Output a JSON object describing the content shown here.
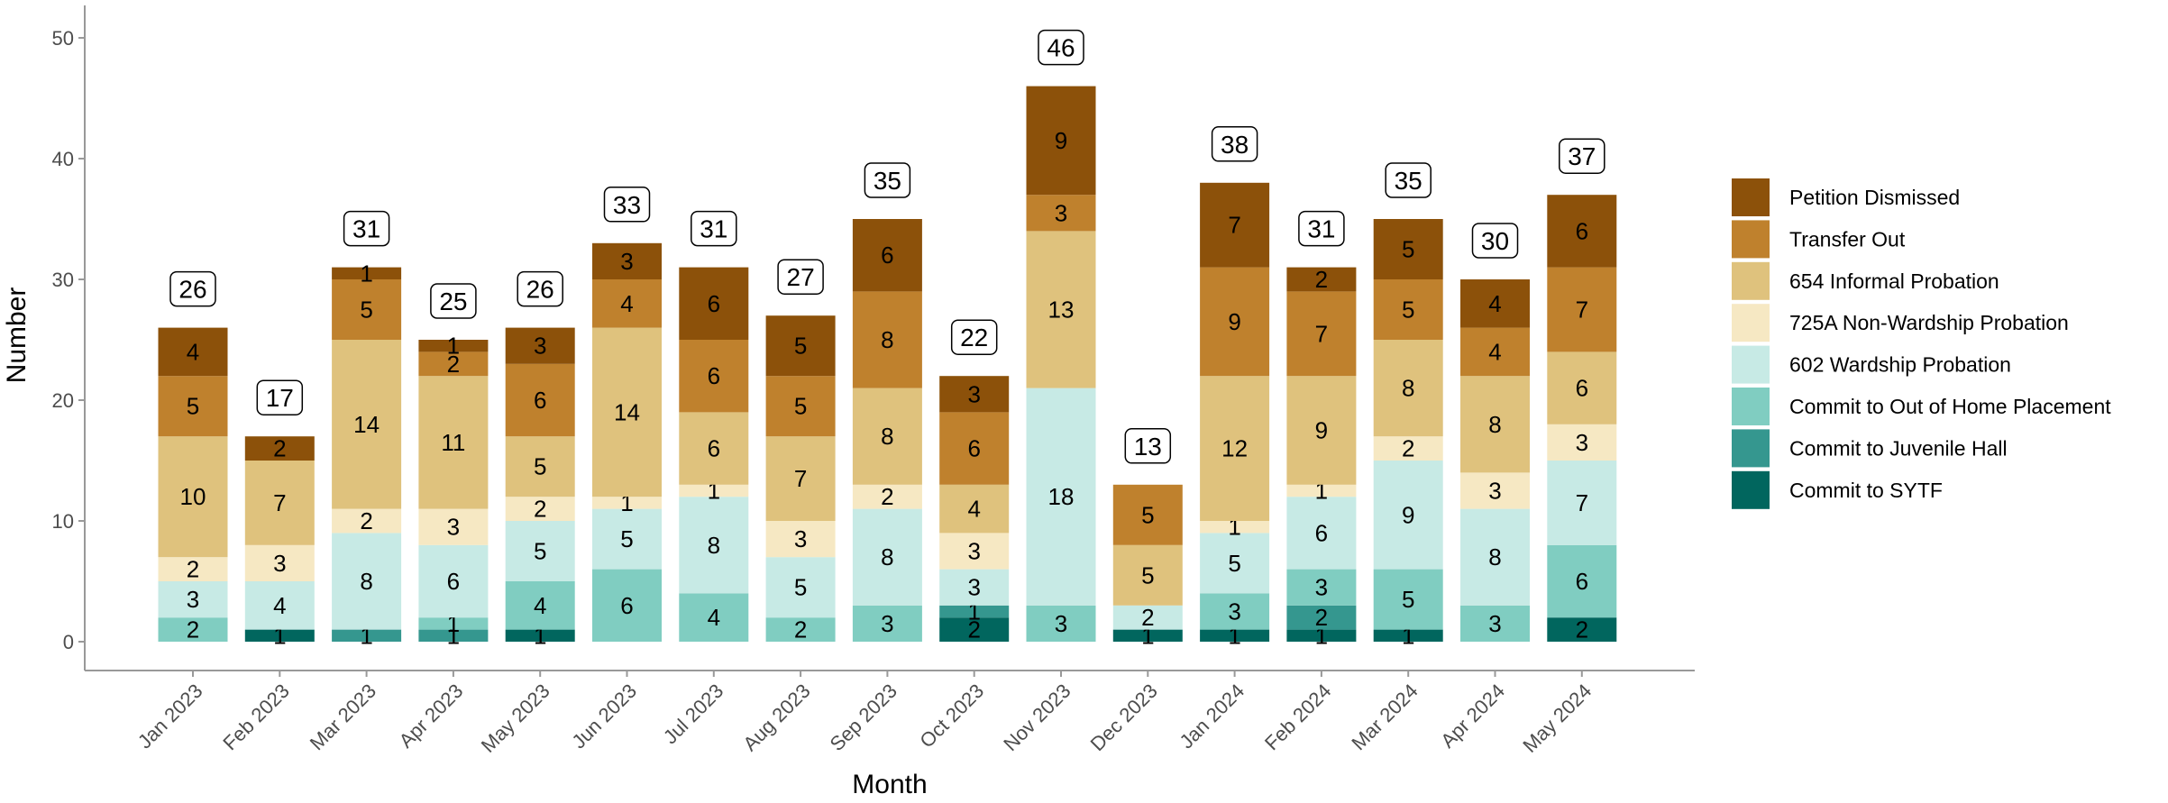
{
  "chart_data": {
    "type": "bar",
    "stacked": true,
    "title": "",
    "xlabel": "Month",
    "ylabel": "Number",
    "ylim": [
      0,
      50
    ],
    "yticks": [
      0,
      10,
      20,
      30,
      40,
      50
    ],
    "grid": false,
    "legend_position": "right",
    "categories": [
      "Jan 2023",
      "Feb 2023",
      "Mar 2023",
      "Apr 2023",
      "May 2023",
      "Jun 2023",
      "Jul 2023",
      "Aug 2023",
      "Sep 2023",
      "Oct 2023",
      "Nov 2023",
      "Dec 2023",
      "Jan 2024",
      "Feb 2024",
      "Mar 2024",
      "Apr 2024",
      "May 2024"
    ],
    "totals": [
      26,
      17,
      31,
      25,
      26,
      33,
      31,
      27,
      35,
      22,
      46,
      13,
      38,
      31,
      35,
      30,
      37
    ],
    "series": [
      {
        "name": "Commit to SYTF",
        "color": "#01665e",
        "values": [
          0,
          1,
          0,
          0,
          1,
          0,
          0,
          0,
          0,
          2,
          0,
          1,
          1,
          1,
          1,
          0,
          2
        ]
      },
      {
        "name": "Commit to Juvenile Hall",
        "color": "#35978f",
        "values": [
          0,
          0,
          1,
          1,
          0,
          0,
          0,
          0,
          0,
          1,
          0,
          0,
          0,
          2,
          0,
          0,
          0
        ]
      },
      {
        "name": "Commit to Out of Home Placement",
        "color": "#80cdc1",
        "values": [
          2,
          0,
          0,
          1,
          4,
          6,
          4,
          2,
          3,
          0,
          3,
          0,
          3,
          3,
          5,
          3,
          6
        ]
      },
      {
        "name": "602 Wardship Probation",
        "color": "#c7eae5",
        "values": [
          3,
          4,
          8,
          6,
          5,
          5,
          8,
          5,
          8,
          3,
          18,
          2,
          5,
          6,
          9,
          8,
          7
        ]
      },
      {
        "name": "725A Non-Wardship Probation",
        "color": "#f6e8c3",
        "values": [
          2,
          3,
          2,
          3,
          2,
          1,
          1,
          3,
          2,
          3,
          0,
          0,
          1,
          1,
          2,
          3,
          3
        ]
      },
      {
        "name": "654 Informal Probation",
        "color": "#dfc27d",
        "values": [
          10,
          7,
          14,
          11,
          5,
          14,
          6,
          7,
          8,
          4,
          13,
          5,
          12,
          9,
          8,
          8,
          6
        ]
      },
      {
        "name": "Transfer Out",
        "color": "#bf812d",
        "values": [
          5,
          0,
          5,
          2,
          6,
          4,
          6,
          5,
          8,
          6,
          3,
          5,
          9,
          7,
          5,
          4,
          7
        ]
      },
      {
        "name": "Petition Dismissed",
        "color": "#8c510a",
        "values": [
          4,
          2,
          1,
          1,
          3,
          3,
          6,
          5,
          6,
          3,
          9,
          0,
          7,
          2,
          5,
          4,
          6
        ]
      }
    ],
    "legend_order": [
      "Petition Dismissed",
      "Transfer Out",
      "654 Informal Probation",
      "725A Non-Wardship Probation",
      "602 Wardship Probation",
      "Commit to Out of Home Placement",
      "Commit to Juvenile Hall",
      "Commit to SYTF"
    ]
  }
}
